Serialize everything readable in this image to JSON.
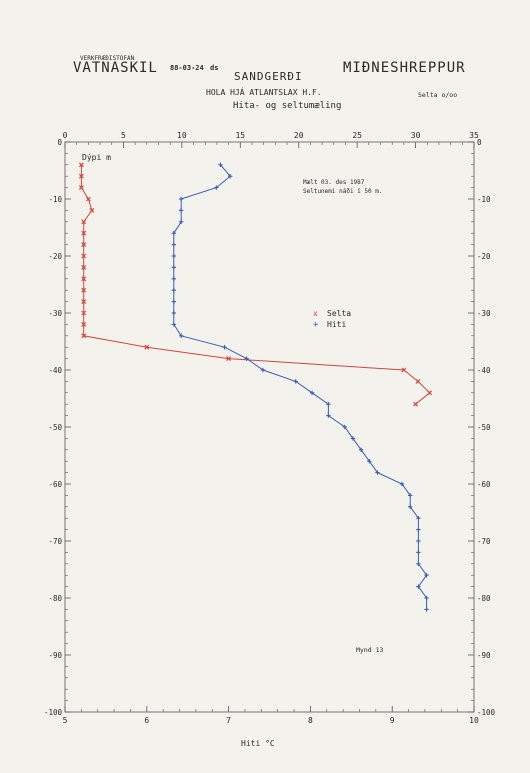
{
  "header": {
    "org_small": "VERKFRÆÐISTOFAN",
    "org_big": "VATNASKIL",
    "date": "88-03-24",
    "initials": "ds",
    "place": "SANDGERÐI",
    "region": "MIÐNESHREPPUR",
    "well": "HOLA HJÁ ATLANTSLAX H.F.",
    "subtitle": "Hita- og seltumæling",
    "selta_unit": "Selta o/oo"
  },
  "annotations": {
    "measured": "Mælt 03. des 1987",
    "salinity_note": "Seltunemi náði í 50 m.",
    "figure": "Mynd 13",
    "depth_label": "Dýpi m"
  },
  "chart_data": {
    "type": "line",
    "xlabel": "Hiti °C",
    "ylabel": "Dýpi m",
    "bottom_axis": {
      "label": "Hiti °C",
      "range": [
        5,
        10
      ],
      "ticks": [
        5,
        6,
        7,
        8,
        9,
        10
      ]
    },
    "top_axis": {
      "label": "Selta o/oo",
      "range": [
        0,
        35
      ],
      "ticks": [
        0,
        5,
        10,
        15,
        20,
        25,
        30,
        35
      ]
    },
    "y_axis": {
      "range": [
        -100,
        0
      ],
      "ticks": [
        0,
        -10,
        -20,
        -30,
        -40,
        -50,
        -60,
        -70,
        -80,
        -90,
        -100
      ]
    },
    "legend": {
      "position": "center-right",
      "entries": [
        "Selta",
        "Hiti"
      ]
    },
    "series": [
      {
        "name": "Selta",
        "axis": "top",
        "color": "#d8443c",
        "marker": "x",
        "points": [
          [
            1.4,
            -4
          ],
          [
            1.4,
            -6
          ],
          [
            1.4,
            -8
          ],
          [
            2.0,
            -10
          ],
          [
            2.3,
            -12
          ],
          [
            1.6,
            -14
          ],
          [
            1.6,
            -16
          ],
          [
            1.6,
            -18
          ],
          [
            1.6,
            -20
          ],
          [
            1.6,
            -22
          ],
          [
            1.6,
            -24
          ],
          [
            1.6,
            -26
          ],
          [
            1.6,
            -28
          ],
          [
            1.6,
            -30
          ],
          [
            1.6,
            -32
          ],
          [
            1.6,
            -34
          ],
          [
            7.0,
            -36
          ],
          [
            14.0,
            -38
          ],
          [
            29.0,
            -40
          ],
          [
            30.2,
            -42
          ],
          [
            31.2,
            -44
          ],
          [
            30.0,
            -46
          ]
        ]
      },
      {
        "name": "Hiti",
        "axis": "bottom",
        "color": "#3a5fb8",
        "marker": "+",
        "points": [
          [
            6.9,
            -4
          ],
          [
            7.02,
            -6
          ],
          [
            6.85,
            -8
          ],
          [
            6.42,
            -10
          ],
          [
            6.42,
            -12
          ],
          [
            6.42,
            -14
          ],
          [
            6.33,
            -16
          ],
          [
            6.33,
            -18
          ],
          [
            6.33,
            -20
          ],
          [
            6.33,
            -22
          ],
          [
            6.33,
            -24
          ],
          [
            6.33,
            -26
          ],
          [
            6.33,
            -28
          ],
          [
            6.33,
            -30
          ],
          [
            6.33,
            -32
          ],
          [
            6.42,
            -34
          ],
          [
            6.95,
            -36
          ],
          [
            7.22,
            -38
          ],
          [
            7.42,
            -40
          ],
          [
            7.82,
            -42
          ],
          [
            8.02,
            -44
          ],
          [
            8.22,
            -46
          ],
          [
            8.22,
            -48
          ],
          [
            8.42,
            -50
          ],
          [
            8.52,
            -52
          ],
          [
            8.62,
            -54
          ],
          [
            8.72,
            -56
          ],
          [
            8.82,
            -58
          ],
          [
            9.12,
            -60
          ],
          [
            9.22,
            -62
          ],
          [
            9.22,
            -64
          ],
          [
            9.32,
            -66
          ],
          [
            9.32,
            -68
          ],
          [
            9.32,
            -70
          ],
          [
            9.32,
            -72
          ],
          [
            9.32,
            -74
          ],
          [
            9.42,
            -76
          ],
          [
            9.32,
            -78
          ],
          [
            9.42,
            -80
          ],
          [
            9.42,
            -82
          ]
        ]
      }
    ]
  }
}
